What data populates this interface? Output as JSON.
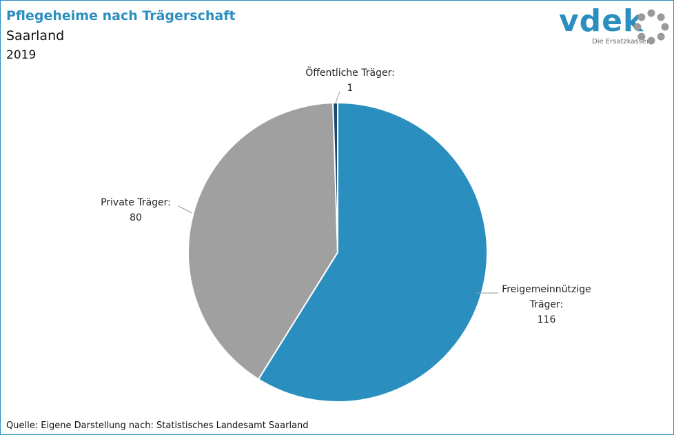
{
  "header": {
    "title": "Pflegeheime nach Trägerschaft",
    "subtitle": "Saarland",
    "year": "2019"
  },
  "logo": {
    "text": "vdek",
    "tagline": "Die Ersatzkassen",
    "color": "#2a8fbf",
    "ring_color": "#9a9a9a"
  },
  "chart_data": {
    "type": "pie",
    "slices": [
      {
        "name": "Freigemeinnützige Träger",
        "label_lines": [
          "Freigemeinnützige",
          "Träger:"
        ],
        "value": 116,
        "color": "#2a8fbf"
      },
      {
        "name": "Private Träger",
        "label_lines": [
          "Private Träger:"
        ],
        "value": 80,
        "color": "#a0a0a0"
      },
      {
        "name": "Öffentliche Träger",
        "label_lines": [
          "Öffentliche Träger:"
        ],
        "value": 1,
        "color": "#1a4a6e"
      }
    ]
  },
  "footer": {
    "source": "Quelle: Eigene Darstellung nach: Statistisches Landesamt Saarland"
  }
}
